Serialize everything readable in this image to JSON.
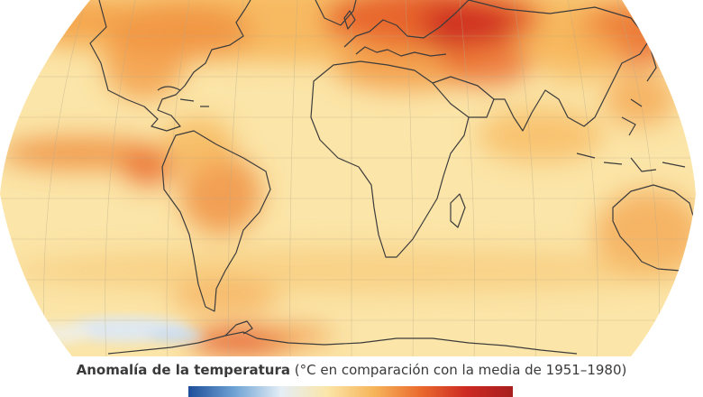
{
  "legend": {
    "title_bold": "Anomalía de la temperatura",
    "title_rest": "(°C en comparación con la media de 1951–1980)"
  },
  "colors": {
    "ocean_base": "#fbe5a8",
    "scale": [
      "#1d4e9a",
      "#6fa3d4",
      "#e4eef6",
      "#fbe5a8",
      "#f6b55a",
      "#ea6b2e",
      "#cc2a22",
      "#a81e1e"
    ],
    "coastline": "#3c3c3c",
    "graticule": "#b8aa8a"
  }
}
